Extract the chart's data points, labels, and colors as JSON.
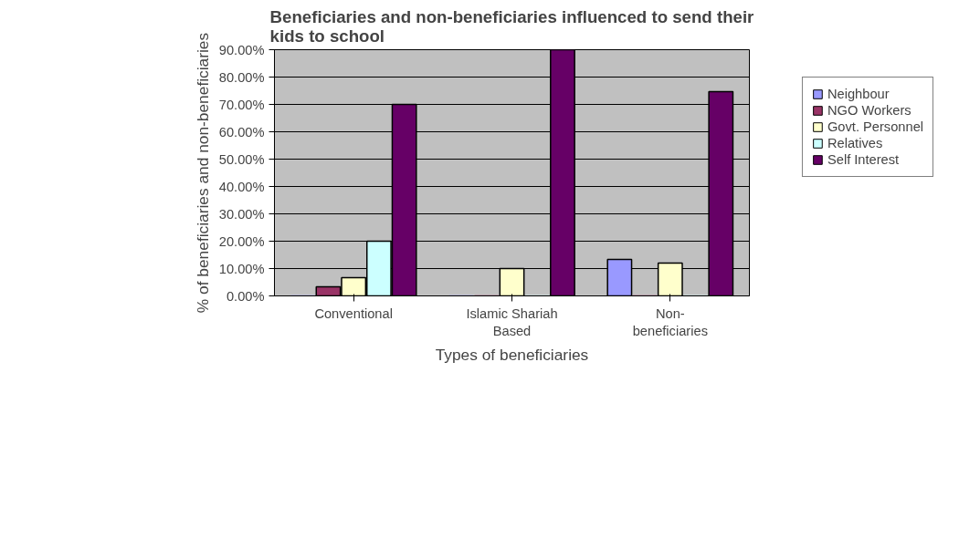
{
  "chart_data": {
    "type": "bar",
    "title": "Beneficiaries and non-beneficiaries influenced to send their kids to school",
    "xlabel": "Types of beneficiaries",
    "ylabel": "% of beneficiaries and non-beneficiaries",
    "categories": [
      "Conventional",
      "Islamic Shariah Based",
      "Non-beneficiaries"
    ],
    "series": [
      {
        "name": "Neighbour",
        "color": "#9999ff",
        "values": [
          0,
          0,
          13.3
        ]
      },
      {
        "name": "NGO Workers",
        "color": "#993366",
        "values": [
          3.3,
          0,
          0
        ]
      },
      {
        "name": "Govt. Personnel",
        "color": "#ffffcc",
        "values": [
          6.7,
          10,
          12
        ]
      },
      {
        "name": "Relatives",
        "color": "#ccffff",
        "values": [
          20,
          0,
          0
        ]
      },
      {
        "name": "Self Interest",
        "color": "#660066",
        "values": [
          70,
          90,
          74.7
        ]
      }
    ],
    "ylim": [
      0,
      90
    ],
    "yticks": [
      {
        "value": 0,
        "label": "0.00%"
      },
      {
        "value": 10,
        "label": "10.00%"
      },
      {
        "value": 20,
        "label": "20.00%"
      },
      {
        "value": 30,
        "label": "30.00%"
      },
      {
        "value": 40,
        "label": "40.00%"
      },
      {
        "value": 50,
        "label": "50.00%"
      },
      {
        "value": 60,
        "label": "60.00%"
      },
      {
        "value": 70,
        "label": "70.00%"
      },
      {
        "value": 80,
        "label": "80.00%"
      },
      {
        "value": 90,
        "label": "90.00%"
      }
    ],
    "grid": "y",
    "legend": "right"
  }
}
